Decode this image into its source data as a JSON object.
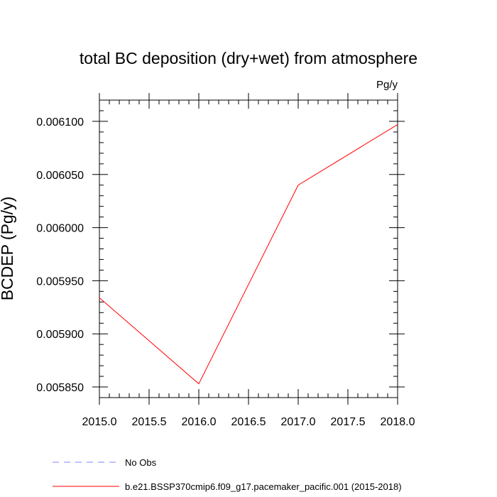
{
  "chart_data": {
    "type": "line",
    "title": "total BC deposition (dry+wet) from atmosphere",
    "units_label": "Pg/y",
    "xlabel": "",
    "ylabel": "BCDEP  (Pg/y)",
    "xlim": [
      2015.0,
      2018.0
    ],
    "ylim": [
      0.00584,
      0.00612
    ],
    "x_ticks": [
      2015.0,
      2015.5,
      2016.0,
      2016.5,
      2017.0,
      2017.5,
      2018.0
    ],
    "x_tick_labels": [
      "2015.0",
      "2015.5",
      "2016.0",
      "2016.5",
      "2017.0",
      "2017.5",
      "2018.0"
    ],
    "y_ticks": [
      0.00585,
      0.0059,
      0.00595,
      0.006,
      0.00605,
      0.0061
    ],
    "y_tick_labels": [
      "0.005850",
      "0.005900",
      "0.005950",
      "0.006000",
      "0.006050",
      "0.006100"
    ],
    "grid": false,
    "legend_position": "bottom",
    "series": [
      {
        "name": "b.e21.BSSP370cmip6.f09_g17.pacemaker_pacific.001 (2015-2018)",
        "color": "#ff0000",
        "style": "solid",
        "x": [
          2015,
          2016,
          2017,
          2018
        ],
        "values": [
          0.005934,
          0.005853,
          0.00604,
          0.006097
        ]
      }
    ],
    "legend": [
      {
        "label": "No Obs",
        "color": "#8080ff",
        "style": "dashed"
      },
      {
        "label": "b.e21.BSSP370cmip6.f09_g17.pacemaker_pacific.001 (2015-2018)",
        "color": "#ff0000",
        "style": "solid"
      }
    ]
  }
}
